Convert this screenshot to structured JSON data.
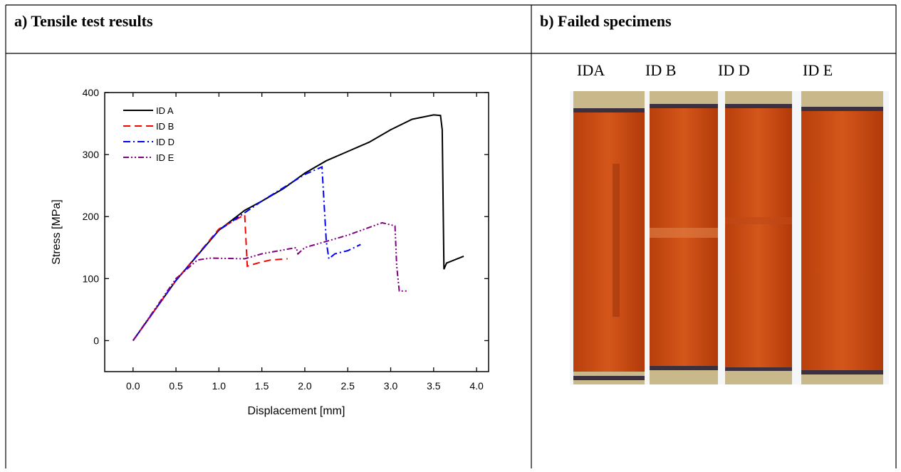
{
  "table": {
    "headers": [
      "a) Tensile test results",
      "b) Failed specimens"
    ]
  },
  "chart_data": {
    "type": "line",
    "x_label": "Displacement [mm]",
    "y_label": "Stress [MPa]",
    "xlim": [
      -0.33,
      4.14
    ],
    "ylim": [
      -50,
      400
    ],
    "xticks": [
      {
        "value": 0,
        "label": "0.0"
      },
      {
        "value": 0.5,
        "label": "0.5"
      },
      {
        "value": 1,
        "label": "1.0"
      },
      {
        "value": 1.5,
        "label": "1.5"
      },
      {
        "value": 2,
        "label": "2.0"
      },
      {
        "value": 2.5,
        "label": "2.5"
      },
      {
        "value": 3,
        "label": "3.0"
      },
      {
        "value": 3.5,
        "label": "3.5"
      },
      {
        "value": 4,
        "label": "4.0"
      }
    ],
    "yticks": [
      0,
      100,
      200,
      300,
      400
    ],
    "legend": "top-left",
    "series": [
      {
        "name": "ID A",
        "color": "#000000",
        "dash": "solid",
        "x": [
          0,
          0.5,
          1.0,
          1.3,
          1.5,
          1.75,
          2.0,
          2.25,
          2.5,
          2.75,
          3.0,
          3.25,
          3.5,
          3.58,
          3.6,
          3.62,
          3.65,
          3.85
        ],
        "values": [
          0,
          97,
          178,
          210,
          225,
          245,
          270,
          290,
          305,
          320,
          340,
          357,
          364,
          363,
          340,
          115,
          125,
          136
        ]
      },
      {
        "name": "ID B",
        "color": "#ff0000",
        "dash": "dashed",
        "x": [
          0,
          0.5,
          1.0,
          1.3,
          1.33,
          1.45,
          1.6,
          1.8
        ],
        "values": [
          0,
          97,
          180,
          203,
          120,
          125,
          130,
          132
        ]
      },
      {
        "name": "ID D",
        "color": "#0000ff",
        "dash": "dashdot",
        "x": [
          0,
          0.5,
          1.0,
          1.5,
          2.0,
          2.2,
          2.25,
          2.28,
          2.35,
          2.5,
          2.65
        ],
        "values": [
          0,
          97,
          178,
          225,
          268,
          280,
          160,
          132,
          140,
          145,
          155
        ]
      },
      {
        "name": "ID E",
        "color": "#800080",
        "dash": "dashdotdot",
        "x": [
          0,
          0.5,
          0.75,
          0.9,
          1.3,
          1.5,
          1.9,
          1.92,
          2.0,
          2.5,
          2.9,
          3.05,
          3.07,
          3.1,
          3.2
        ],
        "values": [
          0,
          100,
          130,
          133,
          132,
          140,
          150,
          140,
          150,
          170,
          190,
          185,
          120,
          80,
          80
        ]
      }
    ]
  },
  "photo": {
    "labels": [
      "IDA",
      "ID B",
      "ID D",
      "ID E"
    ]
  }
}
